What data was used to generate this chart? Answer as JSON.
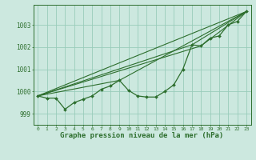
{
  "background_color": "#cce8df",
  "grid_color": "#99ccbb",
  "line_color": "#2d6e2d",
  "marker_color": "#2d6e2d",
  "xlabel": "Graphe pression niveau de la mer (hPa)",
  "xlabel_fontsize": 6.5,
  "yticks": [
    999,
    1000,
    1001,
    1002,
    1003
  ],
  "xtick_labels": [
    "0",
    "1",
    "2",
    "3",
    "4",
    "5",
    "6",
    "7",
    "8",
    "9",
    "10",
    "11",
    "12",
    "13",
    "14",
    "15",
    "16",
    "17",
    "18",
    "19",
    "20",
    "21",
    "22",
    "23"
  ],
  "ylim": [
    998.5,
    1003.9
  ],
  "xlim": [
    -0.5,
    23.5
  ],
  "main_series": [
    999.8,
    999.7,
    999.7,
    999.2,
    999.5,
    999.65,
    999.8,
    1000.1,
    1000.25,
    1000.5,
    1000.05,
    999.8,
    999.75,
    999.75,
    1000.0,
    1000.3,
    1001.0,
    1002.1,
    1002.05,
    1002.4,
    1002.5,
    1003.0,
    1003.15,
    1003.6
  ],
  "trend_lines": [
    {
      "x": [
        0,
        23
      ],
      "y": [
        999.8,
        1003.6
      ]
    },
    {
      "x": [
        0,
        9,
        23
      ],
      "y": [
        999.8,
        1000.5,
        1003.6
      ]
    },
    {
      "x": [
        0,
        17,
        23
      ],
      "y": [
        999.8,
        1002.1,
        1003.6
      ]
    },
    {
      "x": [
        0,
        18,
        23
      ],
      "y": [
        999.8,
        1002.05,
        1003.6
      ]
    }
  ]
}
